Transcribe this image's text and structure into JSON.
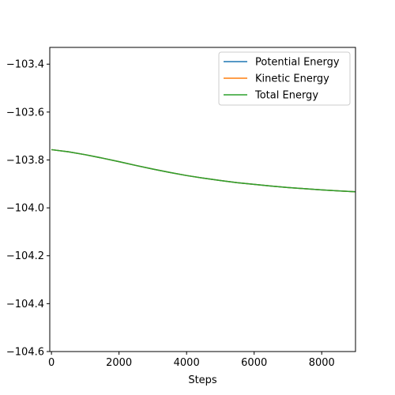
{
  "chart_data": {
    "type": "line",
    "title": "",
    "xlabel": "Steps",
    "ylabel": "",
    "xlim": [
      -50,
      9000
    ],
    "ylim": [
      -104.6,
      -103.33
    ],
    "xticks": [
      0,
      2000,
      4000,
      6000,
      8000
    ],
    "xtick_labels": [
      "0",
      "2000",
      "4000",
      "6000",
      "8000"
    ],
    "yticks": [
      -104.6,
      -104.4,
      -104.2,
      -104.0,
      -103.8,
      -103.6,
      -103.4
    ],
    "ytick_labels": [
      "−104.6",
      "−104.4",
      "−104.2",
      "−104.0",
      "−103.8",
      "−103.6",
      "−103.4"
    ],
    "grid": false,
    "legend": "top-right",
    "series": [
      {
        "name": "Potential Energy",
        "color": "#1f77b4",
        "x": [
          0,
          500,
          1000,
          1500,
          2000,
          2500,
          3000,
          3500,
          4000,
          4500,
          5000,
          5500,
          6000,
          6500,
          7000,
          7500,
          8000,
          8500,
          9000
        ],
        "y": [
          -103.757,
          -103.766,
          -103.778,
          -103.792,
          -103.807,
          -103.823,
          -103.838,
          -103.852,
          -103.865,
          -103.876,
          -103.886,
          -103.895,
          -103.902,
          -103.909,
          -103.915,
          -103.92,
          -103.925,
          -103.929,
          -103.933
        ]
      },
      {
        "name": "Kinetic Energy",
        "color": "#ff7f0e",
        "x": [
          0,
          500,
          1000,
          1500,
          2000,
          2500,
          3000,
          3500,
          4000,
          4500,
          5000,
          5500,
          6000,
          6500,
          7000,
          7500,
          8000,
          8500,
          9000
        ],
        "y": [
          -103.757,
          -103.766,
          -103.778,
          -103.792,
          -103.807,
          -103.823,
          -103.838,
          -103.852,
          -103.865,
          -103.876,
          -103.886,
          -103.895,
          -103.902,
          -103.909,
          -103.915,
          -103.92,
          -103.925,
          -103.929,
          -103.933
        ]
      },
      {
        "name": "Total Energy",
        "color": "#2ca02c",
        "x": [
          0,
          500,
          1000,
          1500,
          2000,
          2500,
          3000,
          3500,
          4000,
          4500,
          5000,
          5500,
          6000,
          6500,
          7000,
          7500,
          8000,
          8500,
          9000
        ],
        "y": [
          -103.757,
          -103.766,
          -103.778,
          -103.792,
          -103.807,
          -103.823,
          -103.838,
          -103.852,
          -103.865,
          -103.876,
          -103.886,
          -103.895,
          -103.902,
          -103.909,
          -103.915,
          -103.92,
          -103.925,
          -103.929,
          -103.933
        ]
      }
    ]
  }
}
